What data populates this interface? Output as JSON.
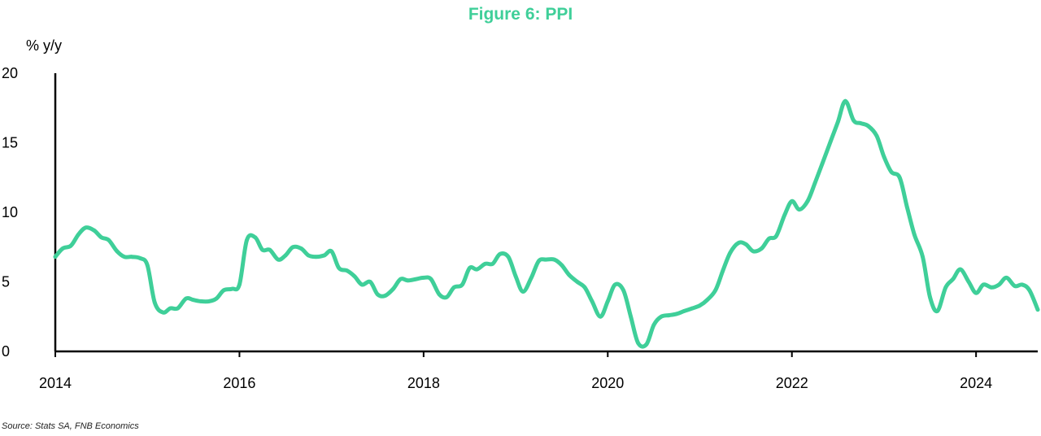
{
  "chart_data": {
    "type": "line",
    "title": "Figure 6: PPI",
    "ylabel": "% y/y",
    "xlabel": "",
    "ylim": [
      0,
      20
    ],
    "yticks": [
      0,
      5,
      10,
      15,
      20
    ],
    "xlim": [
      2014.0,
      2024.67
    ],
    "xticks": [
      2014,
      2016,
      2018,
      2020,
      2022,
      2024
    ],
    "grid": false,
    "line_color": "#3fcf99",
    "series": [
      {
        "x": [
          2014.0,
          2014.08,
          2014.17,
          2014.25,
          2014.33,
          2014.42,
          2014.5,
          2014.58,
          2014.67,
          2014.75,
          2014.83,
          2014.92,
          2015.0,
          2015.08,
          2015.17,
          2015.25,
          2015.33,
          2015.42,
          2015.5,
          2015.58,
          2015.67,
          2015.75,
          2015.83,
          2015.92,
          2016.0,
          2016.08,
          2016.17,
          2016.25,
          2016.33,
          2016.42,
          2016.5,
          2016.58,
          2016.67,
          2016.75,
          2016.83,
          2016.92,
          2017.0,
          2017.08,
          2017.17,
          2017.25,
          2017.33,
          2017.42,
          2017.5,
          2017.58,
          2017.67,
          2017.75,
          2017.83,
          2017.92,
          2018.0,
          2018.08,
          2018.17,
          2018.25,
          2018.33,
          2018.42,
          2018.5,
          2018.58,
          2018.67,
          2018.75,
          2018.83,
          2018.92,
          2019.0,
          2019.08,
          2019.17,
          2019.25,
          2019.33,
          2019.42,
          2019.5,
          2019.58,
          2019.67,
          2019.75,
          2019.83,
          2019.92,
          2020.0,
          2020.08,
          2020.17,
          2020.25,
          2020.33,
          2020.42,
          2020.5,
          2020.58,
          2020.67,
          2020.75,
          2020.83,
          2020.92,
          2021.0,
          2021.08,
          2021.17,
          2021.25,
          2021.33,
          2021.42,
          2021.5,
          2021.58,
          2021.67,
          2021.75,
          2021.83,
          2021.92,
          2022.0,
          2022.08,
          2022.17,
          2022.25,
          2022.33,
          2022.42,
          2022.5,
          2022.58,
          2022.67,
          2022.75,
          2022.83,
          2022.92,
          2023.0,
          2023.08,
          2023.17,
          2023.25,
          2023.33,
          2023.42,
          2023.5,
          2023.58,
          2023.67,
          2023.75,
          2023.83,
          2023.92,
          2024.0,
          2024.08,
          2024.17,
          2024.25,
          2024.33,
          2024.42,
          2024.5,
          2024.58,
          2024.67
        ],
        "values": [
          6.8,
          7.4,
          7.6,
          8.4,
          8.9,
          8.7,
          8.2,
          8.0,
          7.2,
          6.8,
          6.8,
          6.7,
          6.2,
          3.5,
          2.8,
          3.1,
          3.1,
          3.8,
          3.7,
          3.6,
          3.6,
          3.8,
          4.4,
          4.5,
          4.8,
          8.0,
          8.2,
          7.3,
          7.3,
          6.6,
          6.9,
          7.5,
          7.4,
          6.9,
          6.8,
          6.9,
          7.2,
          6.0,
          5.8,
          5.4,
          4.8,
          5.0,
          4.1,
          4.0,
          4.5,
          5.2,
          5.1,
          5.2,
          5.3,
          5.2,
          4.1,
          3.9,
          4.6,
          4.8,
          6.0,
          5.9,
          6.3,
          6.3,
          7.0,
          6.8,
          5.4,
          4.3,
          5.3,
          6.5,
          6.6,
          6.6,
          6.2,
          5.5,
          5.0,
          4.6,
          3.6,
          2.5,
          3.6,
          4.8,
          4.4,
          2.5,
          0.6,
          0.5,
          1.9,
          2.5,
          2.6,
          2.7,
          2.9,
          3.1,
          3.3,
          3.7,
          4.4,
          5.8,
          7.1,
          7.8,
          7.7,
          7.2,
          7.4,
          8.1,
          8.3,
          9.8,
          10.8,
          10.2,
          10.8,
          12.1,
          13.5,
          15.1,
          16.5,
          18.0,
          16.6,
          16.4,
          16.2,
          15.5,
          14.0,
          12.9,
          12.5,
          10.4,
          8.4,
          6.8,
          3.9,
          2.9,
          4.6,
          5.2,
          5.9,
          5.0,
          4.2,
          4.8,
          4.6,
          4.8,
          5.3,
          4.7,
          4.8,
          4.4,
          3.0
        ]
      }
    ]
  },
  "source": "Source: Stats SA, FNB Economics"
}
